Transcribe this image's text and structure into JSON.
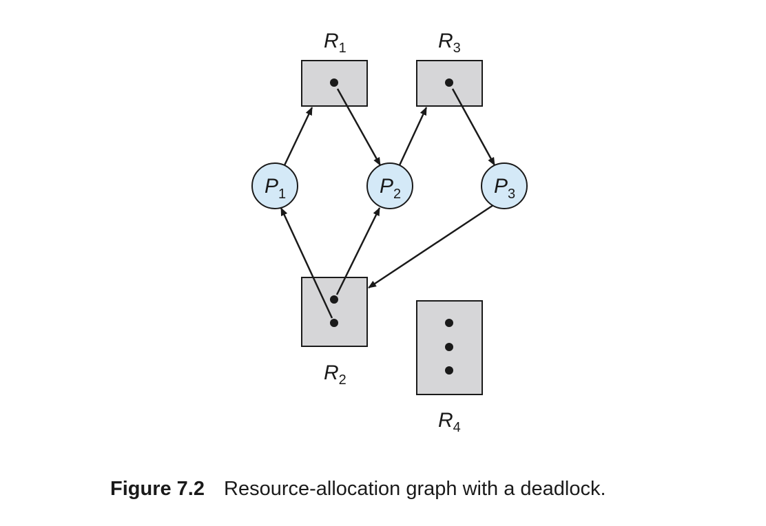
{
  "diagram": {
    "colors": {
      "resource_fill": "#d6d6d8",
      "process_fill": "#d4e9f7",
      "stroke": "#1a1a1a"
    },
    "resources": [
      {
        "id": "R1",
        "letter": "R",
        "sub": "1",
        "instances": 1
      },
      {
        "id": "R2",
        "letter": "R",
        "sub": "2",
        "instances": 2
      },
      {
        "id": "R3",
        "letter": "R",
        "sub": "3",
        "instances": 1
      },
      {
        "id": "R4",
        "letter": "R",
        "sub": "4",
        "instances": 3
      }
    ],
    "processes": [
      {
        "id": "P1",
        "letter": "P",
        "sub": "1"
      },
      {
        "id": "P2",
        "letter": "P",
        "sub": "2"
      },
      {
        "id": "P3",
        "letter": "P",
        "sub": "3"
      }
    ],
    "edges": [
      {
        "from": "P1",
        "to": "R1",
        "type": "request"
      },
      {
        "from": "R1",
        "to": "P2",
        "type": "assignment"
      },
      {
        "from": "P2",
        "to": "R3",
        "type": "request"
      },
      {
        "from": "R3",
        "to": "P3",
        "type": "assignment"
      },
      {
        "from": "P3",
        "to": "R2",
        "type": "request"
      },
      {
        "from": "R2",
        "to": "P1",
        "type": "assignment"
      },
      {
        "from": "R2",
        "to": "P2",
        "type": "assignment"
      }
    ]
  },
  "caption": {
    "figure_number": "Figure 7.2",
    "text": "Resource-allocation graph with a deadlock."
  }
}
